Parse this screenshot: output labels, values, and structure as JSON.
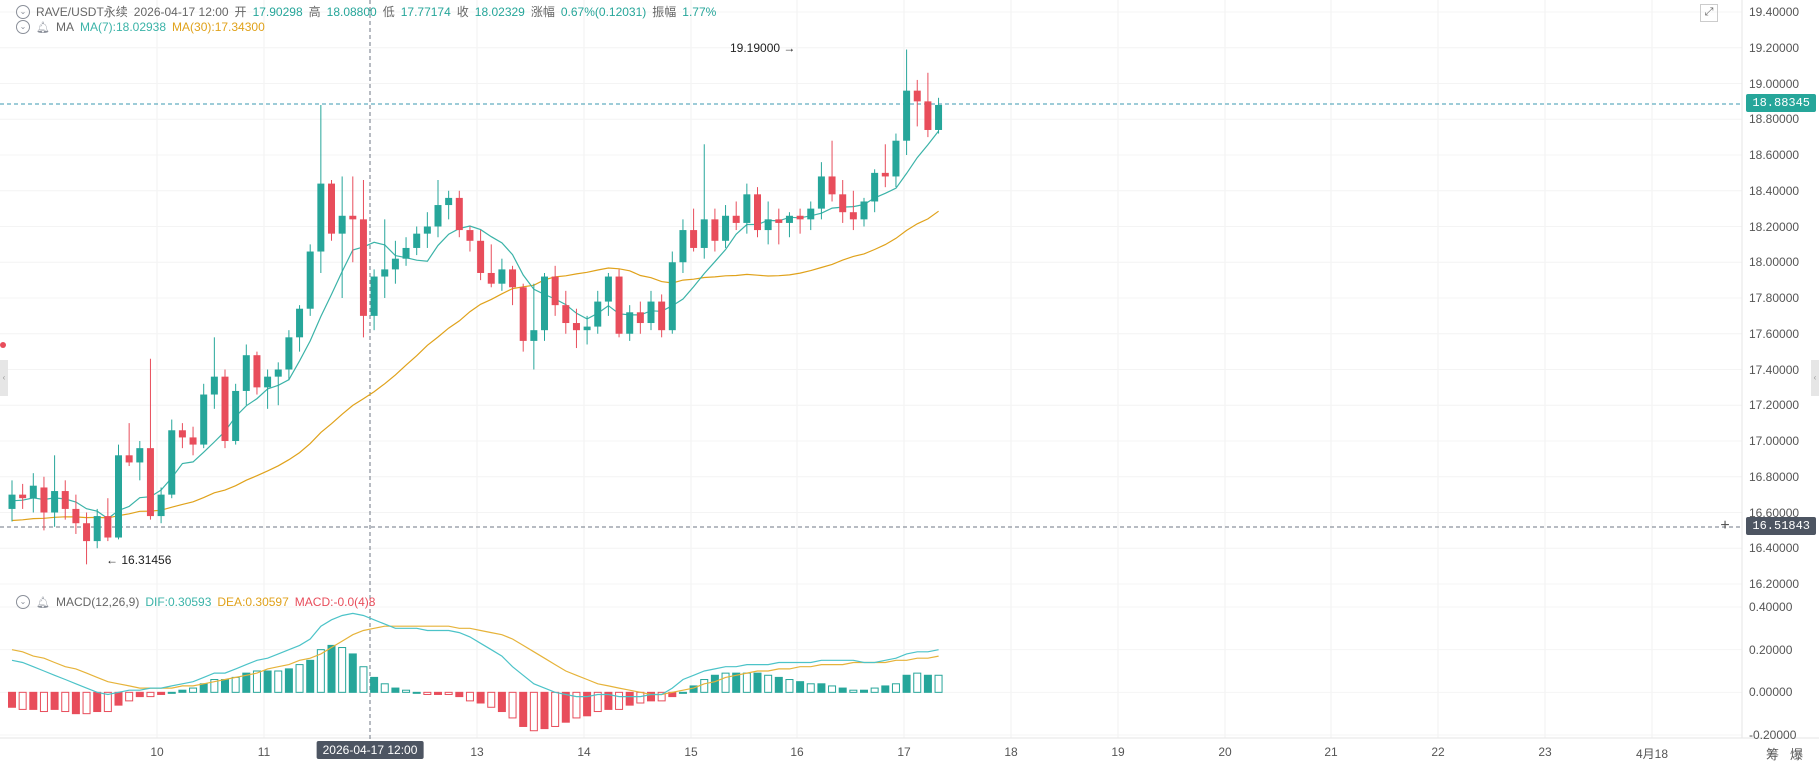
{
  "header": {
    "symbol": "RAVE/USDT永续",
    "datetime": "2026-04-17 12:00",
    "open_label": "开",
    "open": "17.90298",
    "high_label": "高",
    "high": "18.08800",
    "low_label": "低",
    "low": "17.77174",
    "close_label": "收",
    "close": "18.02329",
    "change_label": "涨幅",
    "change": "0.67%(0.12031)",
    "amp_label": "振幅",
    "amp": "1.77%"
  },
  "ma": {
    "label": "MA",
    "ma7": "MA(7):18.02938",
    "ma30": "MA(30):17.34300"
  },
  "macd": {
    "label": "MACD(12,26,9)",
    "dif": "DIF:0.30593",
    "dea": "DEA:0.30597",
    "macd": "MACD:-0.0(4)8"
  },
  "y_ticks_price": [
    "19.40000",
    "19.20000",
    "19.00000",
    "18.80000",
    "18.60000",
    "18.40000",
    "18.20000",
    "18.00000",
    "17.80000",
    "17.60000",
    "17.40000",
    "17.20000",
    "17.00000",
    "16.80000",
    "16.60000",
    "16.40000",
    "16.20000"
  ],
  "y_ticks_macd": [
    "0.40000",
    "0.20000",
    "0.00000",
    "-0.20000"
  ],
  "x_ticks": [
    "10",
    "11",
    "13",
    "14",
    "15",
    "16",
    "17",
    "18",
    "19",
    "20",
    "21",
    "22",
    "23",
    "4月18"
  ],
  "crosshair_time": "2026-04-17 12:00",
  "last_price_tag": "18.88345",
  "cursor_price_tag": "16.51843",
  "high_annotation": "19.19000",
  "low_annotation": "16.31456",
  "bottom_buttons": [
    "筹",
    "爆"
  ],
  "colors": {
    "up": "#26a69a",
    "down": "#e84d5b",
    "ma7": "#3bb3a8",
    "ma30": "#e0a21b",
    "dif": "#4cc3c8",
    "dea": "#e6b33a"
  },
  "chart_data": {
    "type": "candlestick",
    "y_range": [
      16.2,
      19.4
    ],
    "macd_range": [
      -0.2,
      0.4
    ],
    "candles": [
      {
        "o": 16.62,
        "h": 16.78,
        "l": 16.55,
        "c": 16.7
      },
      {
        "o": 16.7,
        "h": 16.76,
        "l": 16.62,
        "c": 16.68
      },
      {
        "o": 16.68,
        "h": 16.82,
        "l": 16.6,
        "c": 16.75
      },
      {
        "o": 16.74,
        "h": 16.8,
        "l": 16.5,
        "c": 16.6
      },
      {
        "o": 16.6,
        "h": 16.92,
        "l": 16.52,
        "c": 16.72
      },
      {
        "o": 16.72,
        "h": 16.78,
        "l": 16.56,
        "c": 16.62
      },
      {
        "o": 16.62,
        "h": 16.7,
        "l": 16.48,
        "c": 16.54
      },
      {
        "o": 16.54,
        "h": 16.6,
        "l": 16.31,
        "c": 16.44
      },
      {
        "o": 16.44,
        "h": 16.62,
        "l": 16.4,
        "c": 16.58
      },
      {
        "o": 16.58,
        "h": 16.68,
        "l": 16.44,
        "c": 16.46
      },
      {
        "o": 16.46,
        "h": 16.98,
        "l": 16.45,
        "c": 16.92
      },
      {
        "o": 16.92,
        "h": 17.1,
        "l": 16.86,
        "c": 16.88
      },
      {
        "o": 16.88,
        "h": 17.0,
        "l": 16.78,
        "c": 16.96
      },
      {
        "o": 16.96,
        "h": 17.46,
        "l": 16.56,
        "c": 16.58
      },
      {
        "o": 16.58,
        "h": 16.74,
        "l": 16.54,
        "c": 16.7
      },
      {
        "o": 16.7,
        "h": 17.12,
        "l": 16.68,
        "c": 17.06
      },
      {
        "o": 17.06,
        "h": 17.1,
        "l": 16.96,
        "c": 17.02
      },
      {
        "o": 17.02,
        "h": 17.08,
        "l": 16.92,
        "c": 16.98
      },
      {
        "o": 16.98,
        "h": 17.32,
        "l": 16.96,
        "c": 17.26
      },
      {
        "o": 17.26,
        "h": 17.58,
        "l": 17.18,
        "c": 17.36
      },
      {
        "o": 17.36,
        "h": 17.4,
        "l": 16.96,
        "c": 17.0
      },
      {
        "o": 17.0,
        "h": 17.32,
        "l": 16.98,
        "c": 17.28
      },
      {
        "o": 17.28,
        "h": 17.54,
        "l": 17.2,
        "c": 17.48
      },
      {
        "o": 17.48,
        "h": 17.5,
        "l": 17.26,
        "c": 17.3
      },
      {
        "o": 17.3,
        "h": 17.4,
        "l": 17.18,
        "c": 17.36
      },
      {
        "o": 17.36,
        "h": 17.44,
        "l": 17.2,
        "c": 17.4
      },
      {
        "o": 17.4,
        "h": 17.62,
        "l": 17.34,
        "c": 17.58
      },
      {
        "o": 17.58,
        "h": 17.76,
        "l": 17.5,
        "c": 17.74
      },
      {
        "o": 17.74,
        "h": 18.1,
        "l": 17.7,
        "c": 18.06
      },
      {
        "o": 18.06,
        "h": 18.88,
        "l": 17.94,
        "c": 18.44
      },
      {
        "o": 18.44,
        "h": 18.46,
        "l": 18.12,
        "c": 18.16
      },
      {
        "o": 18.16,
        "h": 18.48,
        "l": 17.8,
        "c": 18.26
      },
      {
        "o": 18.26,
        "h": 18.48,
        "l": 18.0,
        "c": 18.24
      },
      {
        "o": 18.24,
        "h": 18.46,
        "l": 17.58,
        "c": 17.7
      },
      {
        "o": 17.7,
        "h": 17.96,
        "l": 17.62,
        "c": 17.92
      },
      {
        "o": 17.92,
        "h": 18.24,
        "l": 17.8,
        "c": 17.96
      },
      {
        "o": 17.96,
        "h": 18.12,
        "l": 17.88,
        "c": 18.02
      },
      {
        "o": 18.02,
        "h": 18.14,
        "l": 17.98,
        "c": 18.08
      },
      {
        "o": 18.08,
        "h": 18.2,
        "l": 18.04,
        "c": 18.16
      },
      {
        "o": 18.16,
        "h": 18.28,
        "l": 18.08,
        "c": 18.2
      },
      {
        "o": 18.2,
        "h": 18.46,
        "l": 18.14,
        "c": 18.32
      },
      {
        "o": 18.32,
        "h": 18.4,
        "l": 18.24,
        "c": 18.36
      },
      {
        "o": 18.36,
        "h": 18.4,
        "l": 18.14,
        "c": 18.18
      },
      {
        "o": 18.18,
        "h": 18.2,
        "l": 18.06,
        "c": 18.12
      },
      {
        "o": 18.12,
        "h": 18.18,
        "l": 17.9,
        "c": 17.94
      },
      {
        "o": 17.94,
        "h": 18.1,
        "l": 17.86,
        "c": 17.88
      },
      {
        "o": 17.88,
        "h": 18.02,
        "l": 17.84,
        "c": 17.96
      },
      {
        "o": 17.96,
        "h": 17.98,
        "l": 17.76,
        "c": 17.86
      },
      {
        "o": 17.86,
        "h": 17.88,
        "l": 17.5,
        "c": 17.56
      },
      {
        "o": 17.56,
        "h": 17.88,
        "l": 17.4,
        "c": 17.62
      },
      {
        "o": 17.62,
        "h": 17.94,
        "l": 17.56,
        "c": 17.92
      },
      {
        "o": 17.92,
        "h": 17.98,
        "l": 17.7,
        "c": 17.76
      },
      {
        "o": 17.76,
        "h": 17.84,
        "l": 17.6,
        "c": 17.66
      },
      {
        "o": 17.66,
        "h": 17.74,
        "l": 17.52,
        "c": 17.62
      },
      {
        "o": 17.62,
        "h": 17.7,
        "l": 17.54,
        "c": 17.64
      },
      {
        "o": 17.64,
        "h": 17.84,
        "l": 17.6,
        "c": 17.78
      },
      {
        "o": 17.78,
        "h": 17.94,
        "l": 17.7,
        "c": 17.92
      },
      {
        "o": 17.92,
        "h": 17.96,
        "l": 17.58,
        "c": 17.6
      },
      {
        "o": 17.6,
        "h": 17.76,
        "l": 17.56,
        "c": 17.72
      },
      {
        "o": 17.72,
        "h": 17.78,
        "l": 17.6,
        "c": 17.66
      },
      {
        "o": 17.66,
        "h": 17.84,
        "l": 17.62,
        "c": 17.78
      },
      {
        "o": 17.78,
        "h": 17.82,
        "l": 17.58,
        "c": 17.62
      },
      {
        "o": 17.62,
        "h": 18.06,
        "l": 17.6,
        "c": 18.0
      },
      {
        "o": 18.0,
        "h": 18.24,
        "l": 17.94,
        "c": 18.18
      },
      {
        "o": 18.18,
        "h": 18.3,
        "l": 18.06,
        "c": 18.08
      },
      {
        "o": 18.08,
        "h": 18.66,
        "l": 18.02,
        "c": 18.24
      },
      {
        "o": 18.24,
        "h": 18.3,
        "l": 18.06,
        "c": 18.12
      },
      {
        "o": 18.12,
        "h": 18.32,
        "l": 18.08,
        "c": 18.26
      },
      {
        "o": 18.26,
        "h": 18.34,
        "l": 18.18,
        "c": 18.22
      },
      {
        "o": 18.22,
        "h": 18.44,
        "l": 18.16,
        "c": 18.38
      },
      {
        "o": 18.38,
        "h": 18.42,
        "l": 18.14,
        "c": 18.18
      },
      {
        "o": 18.18,
        "h": 18.34,
        "l": 18.1,
        "c": 18.24
      },
      {
        "o": 18.24,
        "h": 18.3,
        "l": 18.1,
        "c": 18.22
      },
      {
        "o": 18.22,
        "h": 18.28,
        "l": 18.14,
        "c": 18.26
      },
      {
        "o": 18.26,
        "h": 18.3,
        "l": 18.16,
        "c": 18.24
      },
      {
        "o": 18.24,
        "h": 18.34,
        "l": 18.18,
        "c": 18.3
      },
      {
        "o": 18.3,
        "h": 18.56,
        "l": 18.24,
        "c": 18.48
      },
      {
        "o": 18.48,
        "h": 18.68,
        "l": 18.34,
        "c": 18.38
      },
      {
        "o": 18.38,
        "h": 18.46,
        "l": 18.22,
        "c": 18.28
      },
      {
        "o": 18.28,
        "h": 18.4,
        "l": 18.18,
        "c": 18.24
      },
      {
        "o": 18.24,
        "h": 18.36,
        "l": 18.2,
        "c": 18.34
      },
      {
        "o": 18.34,
        "h": 18.52,
        "l": 18.28,
        "c": 18.5
      },
      {
        "o": 18.5,
        "h": 18.66,
        "l": 18.42,
        "c": 18.48
      },
      {
        "o": 18.48,
        "h": 18.72,
        "l": 18.42,
        "c": 18.68
      },
      {
        "o": 18.68,
        "h": 19.19,
        "l": 18.6,
        "c": 18.96
      },
      {
        "o": 18.96,
        "h": 19.02,
        "l": 18.76,
        "c": 18.9
      },
      {
        "o": 18.9,
        "h": 19.06,
        "l": 18.7,
        "c": 18.74
      },
      {
        "o": 18.74,
        "h": 18.92,
        "l": 18.72,
        "c": 18.88
      }
    ],
    "macd_hist": [
      -0.07,
      -0.08,
      -0.08,
      -0.09,
      -0.08,
      -0.09,
      -0.1,
      -0.1,
      -0.09,
      -0.09,
      -0.06,
      -0.04,
      -0.02,
      -0.02,
      -0.01,
      0.0,
      0.01,
      0.02,
      0.04,
      0.06,
      0.06,
      0.07,
      0.09,
      0.1,
      0.1,
      0.1,
      0.11,
      0.13,
      0.15,
      0.2,
      0.22,
      0.21,
      0.18,
      0.12,
      0.07,
      0.04,
      0.02,
      0.01,
      0.0,
      -0.01,
      -0.01,
      -0.01,
      -0.02,
      -0.04,
      -0.05,
      -0.07,
      -0.09,
      -0.12,
      -0.16,
      -0.18,
      -0.17,
      -0.16,
      -0.14,
      -0.12,
      -0.11,
      -0.09,
      -0.08,
      -0.08,
      -0.06,
      -0.05,
      -0.04,
      -0.04,
      -0.02,
      0.0,
      0.03,
      0.06,
      0.08,
      0.09,
      0.09,
      0.09,
      0.09,
      0.08,
      0.07,
      0.06,
      0.05,
      0.04,
      0.04,
      0.03,
      0.02,
      0.01,
      0.01,
      0.02,
      0.03,
      0.04,
      0.08,
      0.09,
      0.08,
      0.08
    ],
    "macd_dif": [
      0.15,
      0.14,
      0.12,
      0.1,
      0.08,
      0.06,
      0.04,
      0.02,
      0.0,
      -0.01,
      0.0,
      0.01,
      0.01,
      0.02,
      0.02,
      0.03,
      0.04,
      0.05,
      0.07,
      0.09,
      0.09,
      0.11,
      0.13,
      0.15,
      0.16,
      0.18,
      0.2,
      0.22,
      0.25,
      0.31,
      0.34,
      0.36,
      0.37,
      0.36,
      0.34,
      0.32,
      0.3,
      0.3,
      0.3,
      0.29,
      0.29,
      0.29,
      0.28,
      0.26,
      0.23,
      0.2,
      0.17,
      0.12,
      0.08,
      0.04,
      0.02,
      0.0,
      -0.01,
      -0.02,
      -0.02,
      -0.01,
      -0.01,
      -0.02,
      -0.02,
      -0.02,
      -0.01,
      -0.01,
      0.02,
      0.06,
      0.08,
      0.1,
      0.11,
      0.12,
      0.12,
      0.13,
      0.13,
      0.13,
      0.14,
      0.14,
      0.14,
      0.14,
      0.15,
      0.15,
      0.15,
      0.15,
      0.14,
      0.14,
      0.15,
      0.16,
      0.18,
      0.19,
      0.19,
      0.2
    ],
    "macd_dea": [
      0.2,
      0.19,
      0.17,
      0.16,
      0.14,
      0.12,
      0.11,
      0.09,
      0.07,
      0.05,
      0.04,
      0.03,
      0.02,
      0.02,
      0.02,
      0.02,
      0.03,
      0.03,
      0.04,
      0.05,
      0.06,
      0.07,
      0.08,
      0.09,
      0.11,
      0.12,
      0.13,
      0.15,
      0.16,
      0.18,
      0.21,
      0.24,
      0.27,
      0.29,
      0.3,
      0.31,
      0.31,
      0.31,
      0.31,
      0.31,
      0.31,
      0.31,
      0.3,
      0.3,
      0.29,
      0.28,
      0.27,
      0.25,
      0.22,
      0.19,
      0.16,
      0.13,
      0.1,
      0.08,
      0.06,
      0.04,
      0.03,
      0.02,
      0.01,
      0.0,
      -0.01,
      -0.01,
      0.0,
      0.01,
      0.02,
      0.04,
      0.05,
      0.07,
      0.08,
      0.09,
      0.1,
      0.1,
      0.11,
      0.11,
      0.12,
      0.12,
      0.13,
      0.13,
      0.13,
      0.14,
      0.14,
      0.14,
      0.14,
      0.15,
      0.15,
      0.16,
      0.16,
      0.17
    ]
  }
}
